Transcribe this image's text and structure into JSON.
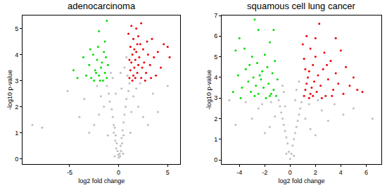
{
  "chart_data": [
    {
      "type": "scatter",
      "title": "adenocarcinoma",
      "x_label": "log2 fold change",
      "y_label": "-log10 p-value",
      "xlim": [
        -9.8,
        6.3
      ],
      "ylim": [
        -0.2,
        5.5
      ],
      "xticks": [
        -5,
        0,
        5
      ],
      "yticks": [
        0,
        1,
        2,
        3,
        4,
        5
      ],
      "marker": "circle",
      "series": [
        {
          "color": "#bebebe",
          "x": [
            0,
            0.1,
            -0.1,
            0.2,
            -0.2,
            0.3,
            -0.3,
            0.4,
            -0.4,
            0.5,
            -0.5,
            0.6,
            -0.6,
            0.7,
            -0.7,
            0.8,
            -0.9,
            1.0,
            -1.0,
            1.1,
            -1.2,
            0.9,
            0.6,
            0.8,
            -0.8,
            -0.6,
            1.5,
            2.0,
            2.5,
            3.0,
            -1.5,
            -2.0,
            -2.5,
            -3.0,
            0.15,
            -0.05,
            0.25,
            -0.25,
            0.35,
            -0.35,
            1.3,
            1.8,
            -1.8,
            -5.2,
            -7.8,
            -8.8,
            4.0,
            5.0,
            -4.0,
            3.5,
            -3.5,
            0.5,
            -0.5,
            0.45,
            -0.4,
            1.2,
            -1.1,
            2.2,
            -2.2,
            0.3,
            -0.3,
            0.2
          ],
          "values": [
            0.05,
            0.2,
            0.3,
            0.5,
            0.6,
            0.8,
            0.9,
            1.1,
            1.2,
            1.4,
            1.3,
            1.7,
            1.6,
            2.0,
            1.9,
            2.3,
            2.2,
            2.6,
            2.5,
            2.9,
            2.8,
            3.2,
            3.5,
            3.9,
            3.3,
            3.1,
            2.4,
            2.0,
            1.6,
            1.3,
            2.0,
            1.7,
            1.3,
            1.0,
            0.1,
            0.15,
            0.3,
            0.4,
            0.6,
            0.7,
            1.8,
            2.7,
            2.4,
            2.6,
            1.2,
            1.3,
            1.8,
            2.8,
            1.6,
            2.5,
            2.3,
            0.9,
            1.0,
            0.2,
            0.1,
            1.0,
            0.9,
            2.9,
            2.8,
            2.7,
            2.5,
            3.3
          ]
        },
        {
          "color": "#00dd00",
          "x": [
            -1.2,
            -1.4,
            -1.6,
            -1.8,
            -2.0,
            -2.2,
            -2.4,
            -2.6,
            -2.8,
            -3.0,
            -1.3,
            -1.5,
            -2.1,
            -3.3,
            -4.6,
            -1.1,
            -1.7,
            -2.5,
            -2.9,
            -1.9,
            -4.2,
            -3.6,
            -2.3,
            -1.2,
            -2.0,
            -1.4
          ],
          "values": [
            3.1,
            3.3,
            3.0,
            3.5,
            3.2,
            3.8,
            3.4,
            4.0,
            3.1,
            3.6,
            3.9,
            4.1,
            4.3,
            3.2,
            3.4,
            3.6,
            3.7,
            3.0,
            4.2,
            3.0,
            3.1,
            3.9,
            3.3,
            5.3,
            4.9,
            4.5
          ]
        },
        {
          "color": "#ee0000",
          "x": [
            1.1,
            1.2,
            1.3,
            1.4,
            1.5,
            1.6,
            1.7,
            1.8,
            1.9,
            2.0,
            2.1,
            2.2,
            2.3,
            2.4,
            2.5,
            2.6,
            2.8,
            3.0,
            3.2,
            3.4,
            3.6,
            3.8,
            4.0,
            4.3,
            4.6,
            5.0,
            5.2,
            1.0,
            1.3,
            1.5,
            1.8,
            2.3,
            1.2,
            1.6,
            1.4,
            1.7,
            2.7,
            3.3,
            1.1,
            2.0,
            2.9,
            1.9
          ],
          "values": [
            3.1,
            3.4,
            3.7,
            4.0,
            3.2,
            3.5,
            3.8,
            4.1,
            3.3,
            3.6,
            3.9,
            4.4,
            3.1,
            3.5,
            4.2,
            3.7,
            3.3,
            4.0,
            3.6,
            4.6,
            3.9,
            3.2,
            4.1,
            3.5,
            4.4,
            4.3,
            3.9,
            4.8,
            5.1,
            4.6,
            5.0,
            5.2,
            4.3,
            4.2,
            3.0,
            3.1,
            3.0,
            3.1,
            3.8,
            4.7,
            4.5,
            4.4
          ]
        }
      ]
    },
    {
      "type": "scatter",
      "title": "squamous cell lung cancer",
      "x_label": "log2 fold change",
      "y_label": "-log10 p-value",
      "xlim": [
        -5.4,
        7.2
      ],
      "ylim": [
        -0.2,
        7.0
      ],
      "xticks": [
        -4,
        -2,
        0,
        2,
        4,
        6
      ],
      "yticks": [
        0,
        1,
        2,
        3,
        4,
        5,
        6,
        7
      ],
      "marker": "circle",
      "series": [
        {
          "color": "#bebebe",
          "x": [
            0,
            0.1,
            -0.1,
            0.2,
            -0.2,
            0.3,
            -0.3,
            0.4,
            -0.4,
            0.5,
            -0.5,
            0.6,
            -0.6,
            0.7,
            -0.7,
            0.8,
            -0.8,
            0.9,
            -0.9,
            1.2,
            -1.2,
            1.6,
            -1.6,
            2.0,
            -2.0,
            2.5,
            -2.5,
            3.0,
            -3.0,
            3.5,
            -3.5,
            4.2,
            -4.3,
            5.0,
            6.5,
            -4.8,
            0.5,
            -0.5,
            0.7,
            -0.6,
            0.3,
            -0.3,
            1.5,
            -1.5,
            2.2,
            -2.2,
            0.4,
            -0.4
          ],
          "values": [
            0.05,
            0.3,
            0.4,
            0.7,
            0.8,
            1.0,
            1.1,
            1.3,
            1.4,
            1.6,
            1.7,
            1.9,
            2.0,
            2.2,
            2.3,
            2.5,
            2.6,
            2.8,
            2.9,
            2.0,
            2.1,
            1.5,
            1.6,
            1.2,
            1.3,
            2.4,
            2.5,
            1.9,
            2.0,
            2.7,
            2.8,
            2.2,
            1.7,
            2.5,
            2.0,
            2.9,
            3.4,
            3.3,
            3.8,
            3.6,
            0.2,
            0.3,
            2.7,
            2.8,
            2.9,
            2.7,
            2.9,
            2.6
          ]
        },
        {
          "color": "#00dd00",
          "x": [
            -1.1,
            -1.3,
            -1.5,
            -1.7,
            -1.9,
            -2.1,
            -2.3,
            -2.5,
            -2.7,
            -2.9,
            -3.1,
            -3.3,
            -3.5,
            -3.8,
            -4.1,
            -4.5,
            -1.4,
            -1.8,
            -2.2,
            -2.6,
            -3.0,
            -3.6,
            -4.0,
            -4.3,
            -2.8,
            -2.5,
            -1.3,
            -1.6,
            -2.0,
            -1.2,
            -3.2,
            -2.4,
            -1.6,
            -2.8,
            -3.9,
            -1.0
          ],
          "values": [
            3.1,
            3.4,
            3.2,
            3.7,
            3.0,
            3.5,
            3.9,
            3.2,
            3.6,
            4.0,
            3.3,
            3.8,
            4.4,
            3.5,
            4.1,
            3.3,
            4.2,
            4.5,
            4.3,
            4.7,
            5.0,
            5.4,
            5.9,
            5.3,
            6.8,
            6.3,
            6.3,
            5.7,
            5.1,
            4.8,
            4.6,
            4.1,
            3.1,
            3.1,
            3.0,
            3.9
          ]
        },
        {
          "color": "#ee0000",
          "x": [
            1.1,
            1.2,
            1.3,
            1.4,
            1.5,
            1.6,
            1.7,
            1.8,
            1.9,
            2.0,
            2.1,
            2.2,
            2.4,
            2.6,
            2.8,
            3.0,
            3.2,
            3.4,
            3.6,
            3.8,
            4.0,
            4.2,
            4.4,
            4.7,
            5.0,
            5.3,
            5.7,
            1.0,
            1.3,
            1.6,
            2.3,
            2.0,
            1.1,
            2.7,
            3.6,
            1.5,
            2.5,
            3.3,
            1.2,
            1.8,
            2.9
          ],
          "values": [
            3.1,
            3.4,
            3.7,
            4.0,
            4.3,
            3.2,
            3.5,
            4.6,
            3.8,
            5.0,
            3.3,
            4.1,
            3.6,
            4.4,
            3.1,
            3.9,
            4.8,
            3.4,
            4.2,
            3.7,
            5.3,
            3.2,
            4.5,
            3.6,
            4.0,
            3.4,
            3.3,
            5.6,
            6.0,
            5.4,
            6.6,
            5.9,
            4.9,
            5.2,
            5.9,
            3.0,
            3.0,
            3.1,
            4.4,
            3.1,
            4.6
          ]
        }
      ]
    }
  ]
}
